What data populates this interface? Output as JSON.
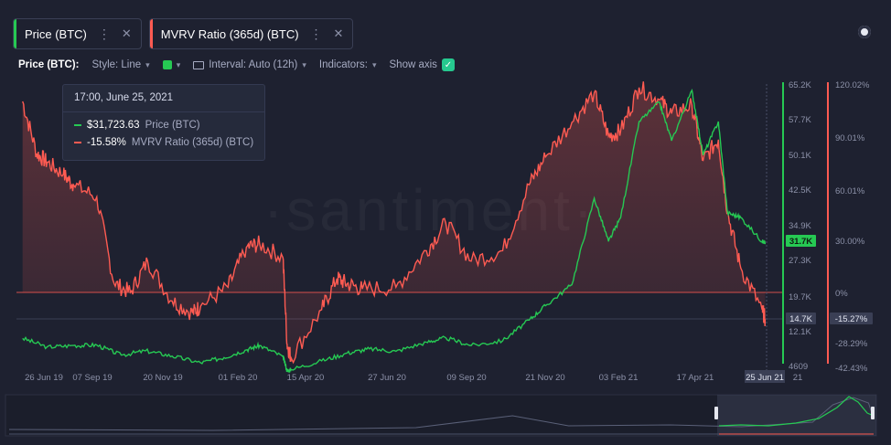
{
  "tabs": [
    {
      "label": "Price (BTC)",
      "color": "#26c953",
      "menu_icon": "more-vertical-icon",
      "close_icon": "close-icon"
    },
    {
      "label": "MVRV Ratio (365d) (BTC)",
      "color": "#ff5b52",
      "menu_icon": "more-vertical-icon",
      "close_icon": "close-icon"
    }
  ],
  "controls": {
    "metric_label": "Price (BTC):",
    "style": "Style: Line",
    "color_swatch": "#26c953",
    "interval": "Interval: Auto (12h)",
    "indicators": "Indicators:",
    "show_axis": "Show axis",
    "show_axis_checked": true
  },
  "watermark": "·santiment·",
  "tooltip": {
    "date": "17:00, June 25, 2021",
    "price_value": "$31,723.63",
    "price_metric": "Price (BTC)",
    "mvrv_value": "-15.58%",
    "mvrv_metric": "MVRV Ratio (365d) (BTC)"
  },
  "chart_data": {
    "type": "line",
    "x_tick_labels": [
      "26 Jun 19",
      "07 Sep 19",
      "20 Nov 19",
      "01 Feb 20",
      "15 Apr 20",
      "27 Jun 20",
      "09 Sep 20",
      "21 Nov 20",
      "03 Feb 21",
      "17 Apr 21",
      "25 Jun 21",
      "21"
    ],
    "price_axis": {
      "ticks": [
        "65.2K",
        "57.7K",
        "50.1K",
        "42.5K",
        "34.9K",
        "27.3K",
        "19.7K",
        "12.1K",
        "4609"
      ],
      "current_label": "31.7K",
      "secondary_label": "14.7K"
    },
    "mvrv_axis": {
      "ticks": [
        "120.02%",
        "90.01%",
        "60.01%",
        "30.00%",
        "0%",
        "-28.29%",
        "-42.43%"
      ],
      "current_label": "-15.27%"
    },
    "series": [
      {
        "name": "Price (BTC)",
        "color": "#26c953",
        "x": [
          "2019-06-26",
          "2019-07-20",
          "2019-08-15",
          "2019-09-07",
          "2019-10-01",
          "2019-10-25",
          "2019-11-20",
          "2019-12-18",
          "2020-01-10",
          "2020-02-01",
          "2020-02-14",
          "2020-03-08",
          "2020-03-12",
          "2020-03-16",
          "2020-04-15",
          "2020-05-10",
          "2020-06-01",
          "2020-06-27",
          "2020-07-27",
          "2020-08-15",
          "2020-09-09",
          "2020-10-10",
          "2020-11-05",
          "2020-11-21",
          "2020-12-17",
          "2021-01-08",
          "2021-01-22",
          "2021-02-03",
          "2021-02-21",
          "2021-03-13",
          "2021-03-25",
          "2021-04-14",
          "2021-04-25",
          "2021-05-10",
          "2021-05-19",
          "2021-06-01",
          "2021-06-22",
          "2021-06-25"
        ],
        "values": [
          11800,
          10000,
          10300,
          10400,
          8300,
          9200,
          8100,
          6700,
          7800,
          9400,
          10300,
          8000,
          5000,
          5300,
          7100,
          8700,
          9600,
          9100,
          11000,
          11900,
          10300,
          11300,
          15600,
          18600,
          23000,
          41000,
          32000,
          37000,
          57000,
          61000,
          53000,
          63500,
          50000,
          57000,
          38000,
          37000,
          32000,
          31724
        ]
      },
      {
        "name": "MVRV Ratio (365d) (BTC)",
        "color": "#ff5b52",
        "x": [
          "2019-06-26",
          "2019-07-10",
          "2019-07-20",
          "2019-08-05",
          "2019-08-15",
          "2019-09-07",
          "2019-09-24",
          "2019-10-10",
          "2019-10-27",
          "2019-11-20",
          "2019-12-10",
          "2019-12-18",
          "2020-01-14",
          "2020-02-01",
          "2020-02-14",
          "2020-03-08",
          "2020-03-12",
          "2020-03-16",
          "2020-04-15",
          "2020-04-30",
          "2020-05-10",
          "2020-05-25",
          "2020-06-27",
          "2020-07-27",
          "2020-08-15",
          "2020-09-09",
          "2020-10-10",
          "2020-11-05",
          "2020-11-21",
          "2020-12-17",
          "2021-01-08",
          "2021-01-22",
          "2021-02-03",
          "2021-02-21",
          "2021-03-13",
          "2021-03-25",
          "2021-04-14",
          "2021-04-25",
          "2021-05-10",
          "2021-05-19",
          "2021-06-01",
          "2021-06-22",
          "2021-06-25"
        ],
        "values": [
          110,
          80,
          75,
          68,
          62,
          55,
          5,
          0,
          18,
          -5,
          -12,
          -8,
          3,
          26,
          28,
          20,
          -30,
          -38,
          -10,
          8,
          5,
          2,
          3,
          24,
          40,
          18,
          24,
          62,
          78,
          98,
          115,
          90,
          93,
          118,
          111,
          103,
          108,
          76,
          88,
          46,
          14,
          -10,
          -15.58
        ]
      }
    ]
  },
  "navigator_label_left": "",
  "colors": {
    "background": "#1e2130",
    "grid": "#2c3042",
    "price": "#26c953",
    "mvrv": "#ff5b52",
    "axis_text": "#8c91a8"
  }
}
